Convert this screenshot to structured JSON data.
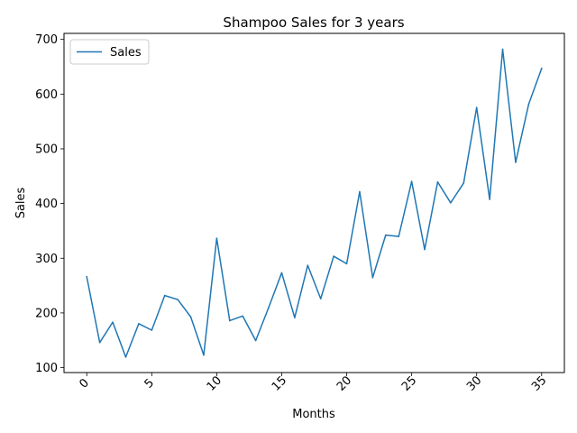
{
  "chart_data": {
    "type": "line",
    "title": "Shampoo Sales for 3 years",
    "xlabel": "Months",
    "ylabel": "Sales",
    "xlim": [
      -1.75,
      36.75
    ],
    "ylim": [
      91,
      711
    ],
    "xticks": [
      0,
      5,
      10,
      15,
      20,
      25,
      30,
      35
    ],
    "yticks": [
      100,
      200,
      300,
      400,
      500,
      600,
      700
    ],
    "xtick_rotation": 45,
    "grid": false,
    "legend": {
      "placement": "top-left",
      "entries": [
        "Sales"
      ]
    },
    "series": [
      {
        "name": "Sales",
        "color": "#1f77b4",
        "x": [
          0,
          1,
          2,
          3,
          4,
          5,
          6,
          7,
          8,
          9,
          10,
          11,
          12,
          13,
          14,
          15,
          16,
          17,
          18,
          19,
          20,
          21,
          22,
          23,
          24,
          25,
          26,
          27,
          28,
          29,
          30,
          31,
          32,
          33,
          34,
          35
        ],
        "values": [
          266.0,
          145.9,
          183.1,
          119.3,
          180.3,
          168.5,
          231.8,
          224.5,
          192.8,
          122.9,
          336.5,
          185.9,
          194.3,
          149.5,
          210.1,
          273.3,
          191.4,
          287.0,
          226.0,
          303.6,
          289.9,
          421.6,
          264.5,
          342.3,
          339.7,
          440.4,
          315.9,
          439.3,
          401.3,
          437.4,
          575.5,
          407.6,
          682.0,
          475.3,
          581.3,
          646.9
        ]
      }
    ]
  }
}
